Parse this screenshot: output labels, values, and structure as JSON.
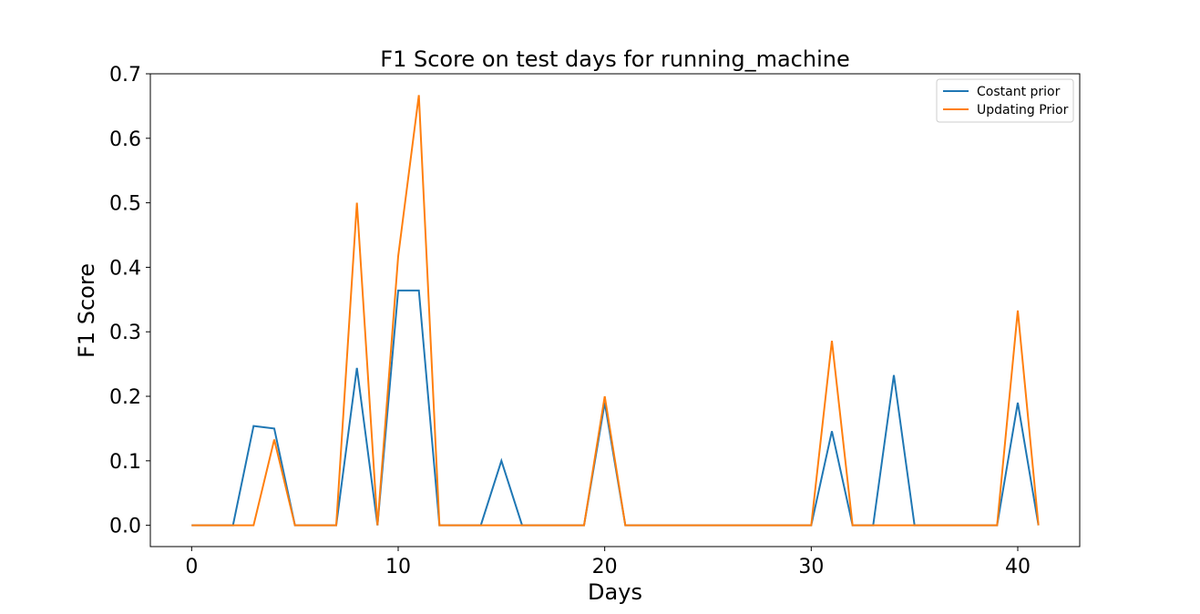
{
  "chart_data": {
    "type": "line",
    "title": "F1 Score on test days for running_machine",
    "xlabel": "Days",
    "ylabel": "F1 Score",
    "xlim": [
      -2,
      43
    ],
    "ylim": [
      -0.033,
      0.7
    ],
    "xticks": [
      0,
      10,
      20,
      30,
      40
    ],
    "yticks": [
      0.0,
      0.1,
      0.2,
      0.3,
      0.4,
      0.5,
      0.6,
      0.7
    ],
    "xtick_labels": [
      "0",
      "10",
      "20",
      "30",
      "40"
    ],
    "ytick_labels": [
      "0.0",
      "0.1",
      "0.2",
      "0.3",
      "0.4",
      "0.5",
      "0.6",
      "0.7"
    ],
    "grid": false,
    "legend_position": "top-right",
    "x": [
      0,
      1,
      2,
      3,
      4,
      5,
      6,
      7,
      8,
      9,
      10,
      11,
      12,
      13,
      14,
      15,
      16,
      17,
      18,
      19,
      20,
      21,
      22,
      23,
      24,
      25,
      26,
      27,
      28,
      29,
      30,
      31,
      32,
      33,
      34,
      35,
      36,
      37,
      38,
      39,
      40,
      41
    ],
    "series": [
      {
        "name": "Costant prior",
        "color": "#1f77b4",
        "values": [
          0,
          0,
          0,
          0.154,
          0.15,
          0,
          0,
          0,
          0.244,
          0,
          0.364,
          0.364,
          0,
          0,
          0,
          0.1,
          0,
          0,
          0,
          0,
          0.19,
          0,
          0,
          0,
          0,
          0,
          0,
          0,
          0,
          0,
          0,
          0.146,
          0,
          0,
          0.233,
          0,
          0,
          0,
          0,
          0,
          0.19,
          0
        ]
      },
      {
        "name": "Updating Prior",
        "color": "#ff7f0e",
        "values": [
          0,
          0,
          0,
          0,
          0.133,
          0,
          0,
          0,
          0.5,
          0,
          0.417,
          0.667,
          0,
          0,
          0,
          0,
          0,
          0,
          0,
          0,
          0.2,
          0,
          0,
          0,
          0,
          0,
          0,
          0,
          0,
          0,
          0,
          0.286,
          0,
          0,
          0,
          0,
          0,
          0,
          0,
          0,
          0.333,
          0
        ]
      }
    ]
  }
}
